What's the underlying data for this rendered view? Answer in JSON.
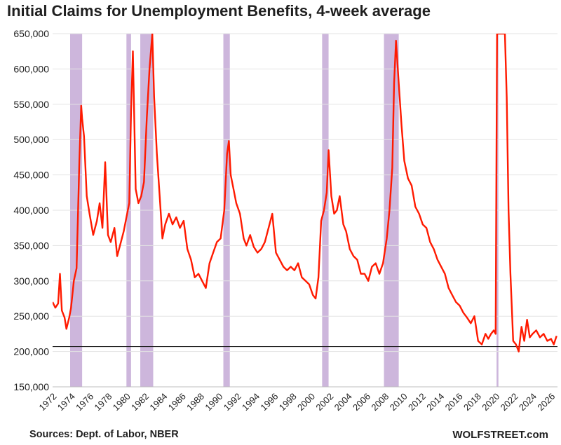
{
  "title": "Initial Claims for Unemployment Benefits, 4-week average",
  "source": "Sources: Dept. of Labor, NBER",
  "brand": "WOLFSTREET.com",
  "colors": {
    "series": "#ff1a00",
    "recession": "#cdb6dc",
    "reference_line": "#1a1a1a",
    "grid": "#e3e3e3"
  },
  "chart_data": {
    "type": "line",
    "title": "Initial Claims for Unemployment Benefits, 4-week average",
    "xlabel": "",
    "ylabel": "",
    "xlim": [
      1972,
      2026.7
    ],
    "ylim": [
      150000,
      650000
    ],
    "y_ticks": [
      650000,
      600000,
      550000,
      500000,
      450000,
      400000,
      350000,
      300000,
      250000,
      200000,
      150000
    ],
    "y_tick_labels": [
      "650,000",
      "600,000",
      "550,000",
      "500,000",
      "450,000",
      "400,000",
      "350,000",
      "300,000",
      "250,000",
      "200,000",
      "150,000"
    ],
    "x_ticks": [
      1972,
      1974,
      1976,
      1978,
      1980,
      1982,
      1984,
      1986,
      1988,
      1990,
      1992,
      1994,
      1996,
      1998,
      2000,
      2002,
      2004,
      2006,
      2008,
      2010,
      2012,
      2014,
      2016,
      2018,
      2020,
      2022,
      2024,
      2026
    ],
    "grid": "horizontal",
    "reference_line": 207000,
    "recessions": [
      [
        1973.9,
        1975.2
      ],
      [
        1980.0,
        1980.5
      ],
      [
        1981.5,
        1982.9
      ],
      [
        1990.5,
        1991.2
      ],
      [
        2001.2,
        2001.9
      ],
      [
        2007.9,
        2009.5
      ],
      [
        2020.1,
        2020.3
      ]
    ],
    "series": [
      {
        "x": [
          1972.0,
          1972.3,
          1972.6,
          1972.8,
          1973.0,
          1973.3,
          1973.5,
          1973.8,
          1974.0,
          1974.3,
          1974.6,
          1974.9,
          1975.1,
          1975.2,
          1975.4,
          1975.7,
          1976.0,
          1976.4,
          1976.8,
          1977.1,
          1977.4,
          1977.7,
          1978.0,
          1978.3,
          1978.7,
          1979.0,
          1979.3,
          1979.7,
          1980.0,
          1980.3,
          1980.5,
          1980.7,
          1981.0,
          1981.3,
          1981.6,
          1981.9,
          1982.2,
          1982.5,
          1982.8,
          1983.0,
          1983.3,
          1983.6,
          1983.9,
          1984.2,
          1984.6,
          1985.0,
          1985.4,
          1985.8,
          1986.2,
          1986.6,
          1987.0,
          1987.4,
          1987.8,
          1988.2,
          1988.6,
          1989.0,
          1989.4,
          1989.8,
          1990.2,
          1990.6,
          1990.9,
          1991.1,
          1991.3,
          1991.6,
          1991.9,
          1992.3,
          1992.7,
          1993.0,
          1993.4,
          1993.8,
          1994.2,
          1994.6,
          1995.0,
          1995.4,
          1995.8,
          1996.2,
          1996.6,
          1997.0,
          1997.4,
          1997.8,
          1998.2,
          1998.6,
          1999.0,
          1999.4,
          1999.8,
          2000.2,
          2000.5,
          2000.8,
          2001.1,
          2001.4,
          2001.7,
          2001.9,
          2002.2,
          2002.5,
          2002.8,
          2003.1,
          2003.5,
          2003.8,
          2004.2,
          2004.6,
          2005.0,
          2005.4,
          2005.8,
          2006.2,
          2006.6,
          2007.0,
          2007.4,
          2007.8,
          2008.2,
          2008.5,
          2008.8,
          2009.0,
          2009.2,
          2009.5,
          2009.8,
          2010.1,
          2010.5,
          2010.9,
          2011.3,
          2011.7,
          2012.1,
          2012.5,
          2012.9,
          2013.3,
          2013.7,
          2014.1,
          2014.5,
          2014.9,
          2015.3,
          2015.7,
          2016.1,
          2016.5,
          2016.9,
          2017.3,
          2017.7,
          2018.1,
          2018.5,
          2018.9,
          2019.2,
          2019.5,
          2019.8,
          2020.0,
          2020.15,
          2020.25,
          2021.0,
          2021.2,
          2021.4,
          2021.6,
          2021.9,
          2022.2,
          2022.5,
          2022.8,
          2023.1,
          2023.4,
          2023.7,
          2024.0,
          2024.4,
          2024.8,
          2025.2,
          2025.6,
          2026.0,
          2026.3,
          2026.6
        ],
        "values": [
          270000,
          262000,
          268000,
          310000,
          258000,
          248000,
          232000,
          248000,
          262000,
          300000,
          318000,
          470000,
          548000,
          530000,
          505000,
          420000,
          395000,
          365000,
          385000,
          410000,
          375000,
          468000,
          365000,
          355000,
          375000,
          335000,
          350000,
          370000,
          390000,
          410000,
          540000,
          625000,
          430000,
          410000,
          420000,
          440000,
          530000,
          600000,
          650000,
          560000,
          480000,
          420000,
          360000,
          380000,
          395000,
          380000,
          390000,
          375000,
          385000,
          345000,
          330000,
          305000,
          310000,
          300000,
          290000,
          325000,
          340000,
          355000,
          360000,
          400000,
          480000,
          498000,
          450000,
          430000,
          410000,
          395000,
          360000,
          350000,
          365000,
          348000,
          340000,
          345000,
          355000,
          375000,
          395000,
          340000,
          330000,
          320000,
          315000,
          320000,
          315000,
          325000,
          305000,
          300000,
          295000,
          280000,
          275000,
          305000,
          385000,
          400000,
          425000,
          485000,
          420000,
          395000,
          400000,
          420000,
          380000,
          370000,
          345000,
          335000,
          330000,
          310000,
          310000,
          300000,
          320000,
          325000,
          310000,
          325000,
          360000,
          400000,
          460000,
          580000,
          640000,
          580000,
          520000,
          470000,
          445000,
          435000,
          405000,
          395000,
          380000,
          375000,
          355000,
          345000,
          330000,
          320000,
          310000,
          290000,
          280000,
          270000,
          265000,
          255000,
          248000,
          240000,
          250000,
          215000,
          210000,
          225000,
          218000,
          225000,
          230000,
          225000,
          650000,
          650000,
          650000,
          560000,
          400000,
          310000,
          215000,
          210000,
          200000,
          235000,
          215000,
          245000,
          220000,
          225000,
          230000,
          220000,
          225000,
          215000,
          218000,
          210000,
          222000
        ]
      }
    ]
  }
}
